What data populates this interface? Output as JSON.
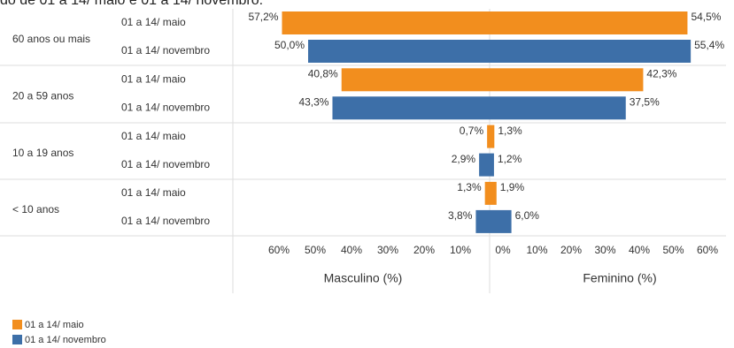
{
  "chart_data": {
    "type": "pyramid",
    "title": "do de 01 a 14/ maio e 01 a 14/ novembro.",
    "categories": [
      "60 anos ou mais",
      "20 a 59 anos",
      "10 a 19 anos",
      "< 10 anos"
    ],
    "male_axis": {
      "label": "Masculino (%)",
      "xlim": [
        0,
        60
      ],
      "xticks": [
        {
          "value": 60,
          "label": "60%"
        },
        {
          "value": 50,
          "label": "50%"
        },
        {
          "value": 40,
          "label": "40%"
        },
        {
          "value": 30,
          "label": "30%"
        },
        {
          "value": 20,
          "label": "20%"
        },
        {
          "value": 10,
          "label": "10%"
        }
      ]
    },
    "female_axis": {
      "label": "Feminino (%)",
      "xlim": [
        0,
        60
      ],
      "xticks": [
        {
          "value": 0,
          "label": "0%"
        },
        {
          "value": 10,
          "label": "10%"
        },
        {
          "value": 20,
          "label": "20%"
        },
        {
          "value": 30,
          "label": "30%"
        },
        {
          "value": 40,
          "label": "40%"
        },
        {
          "value": 50,
          "label": "50%"
        },
        {
          "value": 60,
          "label": "60%"
        }
      ]
    },
    "series": [
      {
        "name": "01 a 14/ maio",
        "color": "#f28e1e",
        "male_values": [
          57.2,
          40.8,
          0.7,
          1.3
        ],
        "male_value_labels": [
          "57,2%",
          "40,8%",
          "0,7%",
          "1,3%"
        ],
        "female_values": [
          54.5,
          42.3,
          1.3,
          1.9
        ],
        "female_value_labels": [
          "54,5%",
          "42,3%",
          "1,3%",
          "1,9%"
        ]
      },
      {
        "name": "01 a 14/ novembro",
        "color": "#3d6fa8",
        "male_values": [
          50.0,
          43.3,
          2.9,
          3.8
        ],
        "male_value_labels": [
          "50,0%",
          "43,3%",
          "2,9%",
          "3,8%"
        ],
        "female_values": [
          55.4,
          37.5,
          1.2,
          6.0
        ],
        "female_value_labels": [
          "55,4%",
          "37,5%",
          "1,2%",
          "6,0%"
        ]
      }
    ]
  }
}
